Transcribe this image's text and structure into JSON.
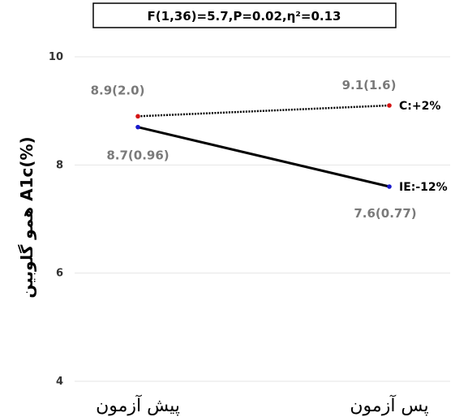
{
  "chart_data": {
    "type": "line",
    "title": "F(1,36)=5.7,P=0.02,η²=0.13",
    "ylabel": "همو گلوبین A1c(%)",
    "xlabel": "",
    "categories": [
      "پیش آزمون",
      "پس آزمون"
    ],
    "yticks": [
      4,
      6,
      8,
      10
    ],
    "ylim": [
      4,
      10
    ],
    "grid": true,
    "series": [
      {
        "name": "C:+2%",
        "values": [
          8.9,
          9.1
        ],
        "labels": [
          "8.9(2.0)",
          "9.1(1.6)"
        ],
        "color": "#000000",
        "marker_color": "#d41414",
        "line_style": "dotted"
      },
      {
        "name": "IE:-12%",
        "values": [
          8.7,
          7.6
        ],
        "labels": [
          "8.7(0.96)",
          "7.6(0.77)"
        ],
        "color": "#000000",
        "marker_color": "#1a1acc",
        "line_style": "solid"
      }
    ]
  }
}
